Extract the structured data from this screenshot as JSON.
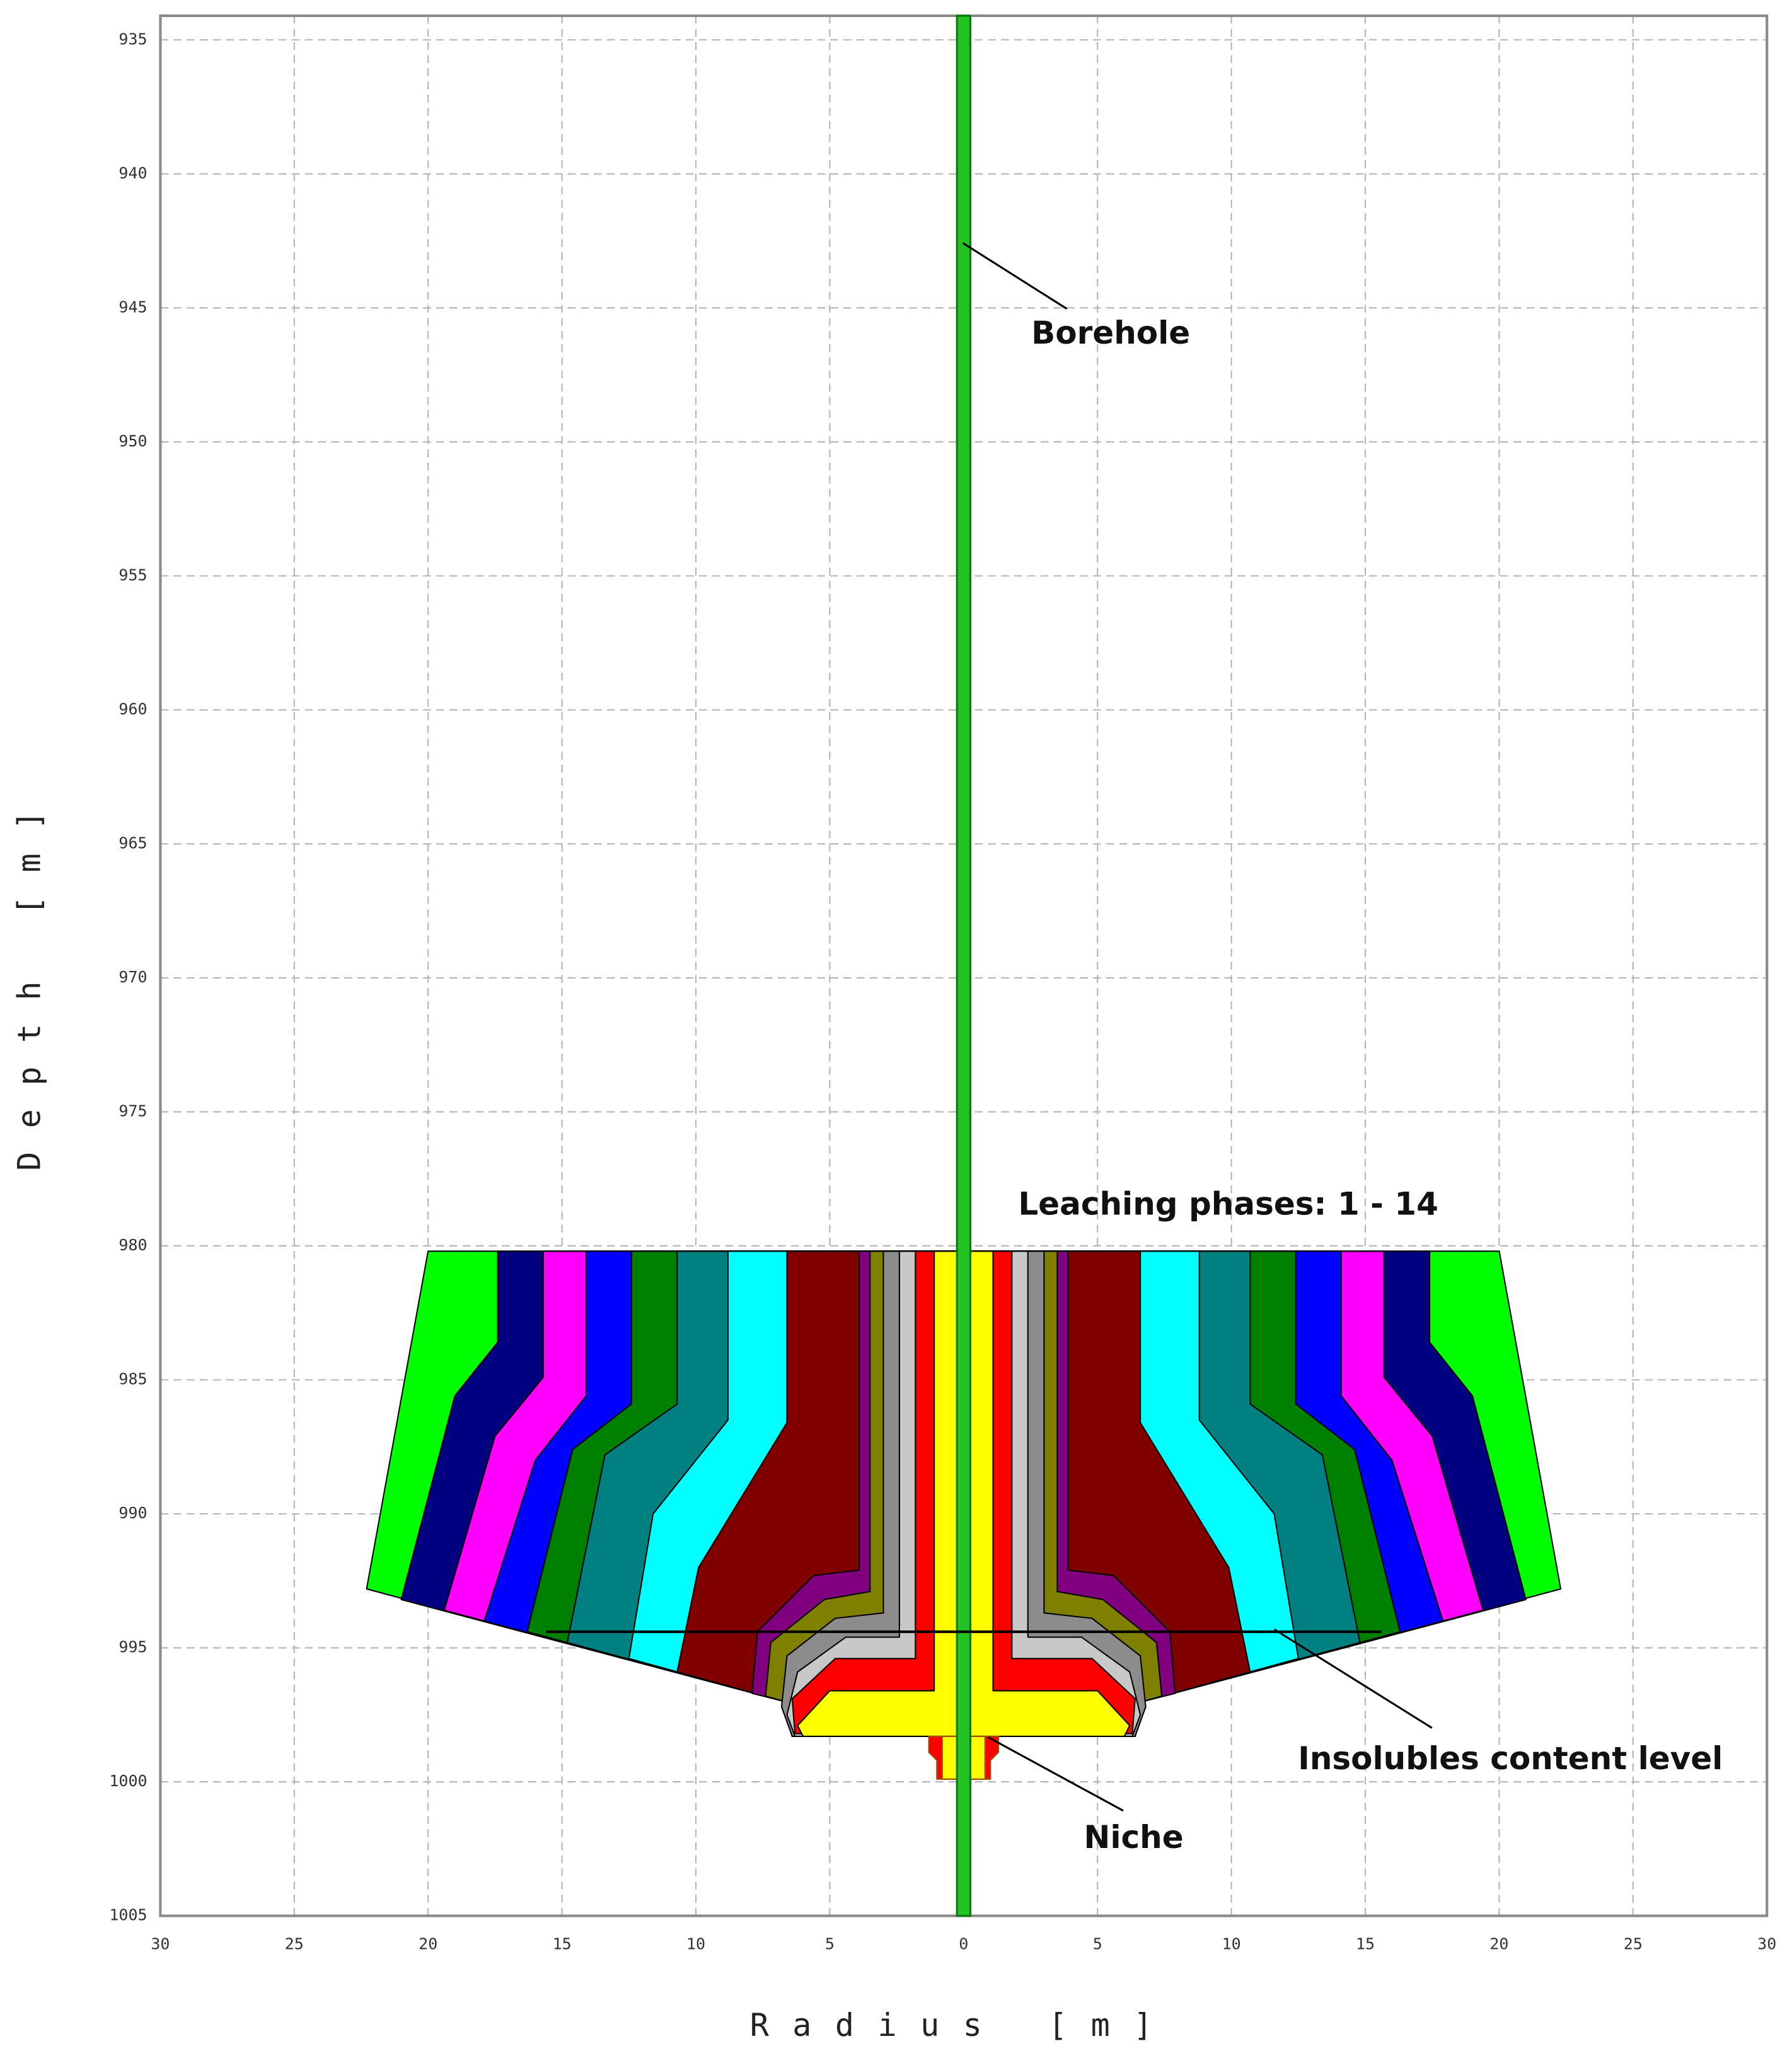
{
  "chart_data": {
    "type": "profile",
    "x_label": "Radius [m]",
    "y_label": "Depth [m]",
    "xlim": [
      -30,
      30
    ],
    "ylim": [
      934.1,
      1005
    ],
    "y_inverted": true,
    "grid": true,
    "xticks": [
      {
        "value": -30,
        "label": "30"
      },
      {
        "value": -25,
        "label": "25"
      },
      {
        "value": -20,
        "label": "20"
      },
      {
        "value": -15,
        "label": "15"
      },
      {
        "value": -10,
        "label": "10"
      },
      {
        "value": -5,
        "label": "5"
      },
      0,
      5,
      10,
      15,
      20,
      25,
      30
    ],
    "yticks": [
      935,
      940,
      945,
      950,
      955,
      960,
      965,
      970,
      975,
      980,
      985,
      990,
      995,
      1000,
      1005
    ],
    "phases": [
      {
        "color": "#ffff00",
        "profile": [
          [
            1.1,
            980.2
          ],
          [
            1.1,
            996.6
          ],
          [
            5.0,
            996.6
          ],
          [
            6.2,
            997.9
          ],
          [
            6.0,
            998.3
          ],
          [
            0,
            998.3
          ]
        ]
      },
      {
        "color": "#ff0000",
        "profile": [
          [
            1.8,
            980.2
          ],
          [
            1.8,
            995.4
          ],
          [
            4.8,
            995.4
          ],
          [
            6.4,
            996.9
          ],
          [
            6.3,
            998.2
          ],
          [
            0,
            998.3
          ]
        ]
      },
      {
        "color": "#c8c8c8",
        "profile": [
          [
            2.4,
            980.2
          ],
          [
            2.4,
            994.6
          ],
          [
            4.4,
            994.6
          ],
          [
            6.2,
            995.9
          ],
          [
            6.6,
            997.5
          ],
          [
            6.3,
            998.3
          ],
          [
            0,
            998.3
          ]
        ]
      },
      {
        "color": "#8c8c8c",
        "profile": [
          [
            3.0,
            980.2
          ],
          [
            3.0,
            993.7
          ],
          [
            4.8,
            993.9
          ],
          [
            6.6,
            995.3
          ],
          [
            6.8,
            997.2
          ],
          [
            6.4,
            998.3
          ],
          [
            0,
            998.3
          ]
        ]
      },
      {
        "color": "#808000",
        "profile": [
          [
            3.5,
            980.2
          ],
          [
            3.5,
            992.9
          ],
          [
            5.2,
            993.2
          ],
          [
            7.2,
            994.8
          ],
          [
            7.4,
            996.8
          ],
          [
            6.7,
            997.0
          ],
          [
            6.4,
            998.3
          ],
          [
            0,
            998.3
          ]
        ]
      },
      {
        "color": "#800080",
        "profile": [
          [
            3.9,
            980.2
          ],
          [
            3.9,
            992.1
          ],
          [
            5.6,
            992.3
          ],
          [
            7.7,
            994.4
          ],
          [
            7.9,
            996.7
          ],
          [
            6.7,
            997.0
          ],
          [
            6.4,
            998.3
          ],
          [
            0,
            998.3
          ]
        ]
      },
      {
        "color": "#800000",
        "profile": [
          [
            6.6,
            980.2
          ],
          [
            6.6,
            986.6
          ],
          [
            9.9,
            992.0
          ],
          [
            10.7,
            995.9
          ],
          [
            6.7,
            997.0
          ],
          [
            6.4,
            998.3
          ],
          [
            0,
            998.3
          ]
        ]
      },
      {
        "color": "#00ffff",
        "profile": [
          [
            8.8,
            980.2
          ],
          [
            8.8,
            986.5
          ],
          [
            11.6,
            990.0
          ],
          [
            12.5,
            995.4
          ],
          [
            6.7,
            997.0
          ],
          [
            6.4,
            998.3
          ],
          [
            0,
            998.3
          ]
        ]
      },
      {
        "color": "#008080",
        "profile": [
          [
            10.7,
            980.2
          ],
          [
            10.7,
            985.9
          ],
          [
            13.4,
            987.8
          ],
          [
            14.8,
            994.8
          ],
          [
            6.7,
            997.0
          ],
          [
            6.4,
            998.3
          ],
          [
            0,
            998.3
          ]
        ]
      },
      {
        "color": "#008000",
        "profile": [
          [
            12.4,
            980.2
          ],
          [
            12.4,
            985.9
          ],
          [
            14.6,
            987.6
          ],
          [
            16.3,
            994.4
          ],
          [
            6.7,
            997.0
          ],
          [
            6.4,
            998.3
          ],
          [
            0,
            998.3
          ]
        ]
      },
      {
        "color": "#0000ff",
        "profile": [
          [
            14.1,
            980.2
          ],
          [
            14.1,
            985.6
          ],
          [
            16.0,
            988.0
          ],
          [
            17.9,
            994.0
          ],
          [
            6.7,
            997.0
          ],
          [
            6.4,
            998.3
          ],
          [
            0,
            998.3
          ]
        ]
      },
      {
        "color": "#ff00ff",
        "profile": [
          [
            15.7,
            980.2
          ],
          [
            15.7,
            984.9
          ],
          [
            17.5,
            987.1
          ],
          [
            19.4,
            993.6
          ],
          [
            6.7,
            997.0
          ],
          [
            6.4,
            998.3
          ],
          [
            0,
            998.3
          ]
        ]
      },
      {
        "color": "#000080",
        "profile": [
          [
            17.4,
            980.2
          ],
          [
            17.4,
            983.6
          ],
          [
            19.0,
            985.6
          ],
          [
            21.0,
            993.2
          ],
          [
            6.7,
            997.0
          ],
          [
            6.4,
            998.3
          ],
          [
            0,
            998.3
          ]
        ]
      },
      {
        "color": "#00ff00",
        "profile": [
          [
            20.0,
            980.2
          ],
          [
            22.3,
            992.8
          ],
          [
            6.7,
            997.0
          ],
          [
            6.4,
            998.3
          ],
          [
            0,
            998.3
          ]
        ]
      }
    ],
    "niche": [
      {
        "color": "#ff0000",
        "profile": [
          [
            1.3,
            998.3
          ],
          [
            1.3,
            998.9
          ],
          [
            1.0,
            999.2
          ],
          [
            1.0,
            999.9
          ],
          [
            0,
            999.9
          ]
        ]
      },
      {
        "color": "#ffff00",
        "profile": [
          [
            0.8,
            998.3
          ],
          [
            0.8,
            999.9
          ],
          [
            0,
            999.9
          ]
        ]
      }
    ],
    "borehole": {
      "color": "#22c322",
      "radius": 0.25
    },
    "insolubles_level": {
      "depth": 994.4,
      "extent": [
        -15.6,
        15.6
      ]
    },
    "annotations": [
      {
        "text": "Borehole"
      },
      {
        "text": "Leaching phases: 1 - 14"
      },
      {
        "text": "Insolubles content level"
      },
      {
        "text": "Niche"
      }
    ]
  }
}
